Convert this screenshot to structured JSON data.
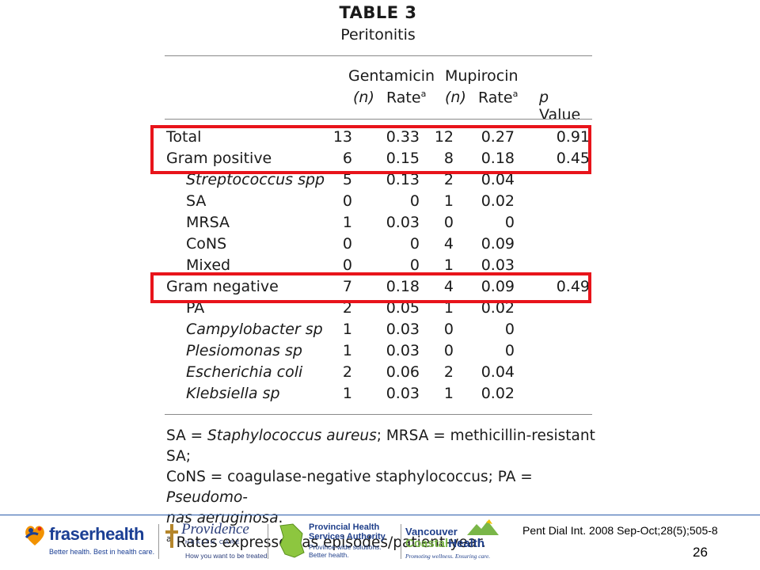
{
  "table": {
    "title": "TABLE 3",
    "subtitle": "Peritonitis",
    "headers": {
      "gentamicin": "Gentamicin",
      "mupirocin": "Mupirocin",
      "n1": "(n)",
      "rate1": "Rate",
      "n2": "(n)",
      "rate2": "Rate",
      "sup": "a",
      "p": "p",
      "value": "Value"
    },
    "rows": [
      {
        "label": "Total",
        "gn": "13",
        "gr": "0.33",
        "mn": "12",
        "mr": "0.27",
        "p": "0.91"
      },
      {
        "label": "Gram positive",
        "gn": "6",
        "gr": "0.15",
        "mn": "8",
        "mr": "0.18",
        "p": "0.45"
      },
      {
        "label": "Streptococcus spp",
        "gn": "5",
        "gr": "0.13",
        "mn": "2",
        "mr": "0.04",
        "p": ""
      },
      {
        "label": "SA",
        "gn": "0",
        "gr": "0",
        "mn": "1",
        "mr": "0.02",
        "p": ""
      },
      {
        "label": "MRSA",
        "gn": "1",
        "gr": "0.03",
        "mn": "0",
        "mr": "0",
        "p": ""
      },
      {
        "label": "CoNS",
        "gn": "0",
        "gr": "0",
        "mn": "4",
        "mr": "0.09",
        "p": ""
      },
      {
        "label": "Mixed",
        "gn": "0",
        "gr": "0",
        "mn": "1",
        "mr": "0.03",
        "p": ""
      },
      {
        "label": "Gram negative",
        "gn": "7",
        "gr": "0.18",
        "mn": "4",
        "mr": "0.09",
        "p": "0.49"
      },
      {
        "label": "PA",
        "gn": "2",
        "gr": "0.05",
        "mn": "1",
        "mr": "0.02",
        "p": ""
      },
      {
        "label": "Campylobacter sp",
        "gn": "1",
        "gr": "0.03",
        "mn": "0",
        "mr": "0",
        "p": ""
      },
      {
        "label": "Plesiomonas sp",
        "gn": "1",
        "gr": "0.03",
        "mn": "0",
        "mr": "0",
        "p": ""
      },
      {
        "label": "Escherichia coli",
        "gn": "2",
        "gr": "0.06",
        "mn": "2",
        "mr": "0.04",
        "p": ""
      },
      {
        "label": "Klebsiella sp",
        "gn": "1",
        "gr": "0.03",
        "mn": "1",
        "mr": "0.02",
        "p": ""
      }
    ],
    "footnote": {
      "sa_key": "SA = ",
      "sa_val": "Staphylococcus aureus",
      "mrsa": "; MRSA = methicillin-resistant SA;",
      "cons": "CoNS = coagulase-negative staphylococcus; PA = ",
      "pa_val1": "Pseudomo-",
      "pa_val2": "nas aeruginosa",
      "end": ".",
      "sup": "a",
      "rates": "Rates expressed as episodes/patient-year."
    },
    "highlight_color": "#e8141b"
  },
  "footer": {
    "citation": "Pent Dial Int. 2008 Sep-Oct;28(5);505-8",
    "page_number": "26",
    "logos": {
      "fraser": {
        "name": "fraser",
        "name2": "health",
        "tagline": "Better health. Best in health care."
      },
      "providence": {
        "name": "Providence",
        "sub": "HEALTH CARE",
        "tagline": "How you want to be treated."
      },
      "phsa": {
        "line1": "Provincial Health",
        "line2": "Services Authority",
        "tagline1": "Province-wide solutions.",
        "tagline2": "Better health."
      },
      "vch": {
        "line1": "Vancouver",
        "line2a": "Coastal",
        "line2b": "Health",
        "tagline": "Promoting wellness. Ensuring care."
      }
    }
  }
}
